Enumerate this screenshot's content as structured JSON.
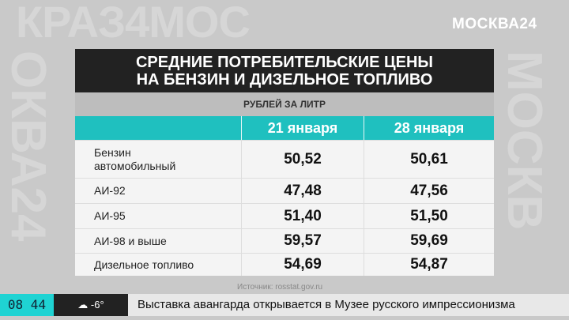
{
  "background_text": [
    "КРАЗ4МОС",
    "ОКВА24",
    "МОСКВ"
  ],
  "logo": "МОСКВА24",
  "title_line1": "СРЕДНИЕ ПОТРЕБИТЕЛЬСКИЕ ЦЕНЫ",
  "title_line2": "НА БЕНЗИН И ДИЗЕЛЬНОЕ ТОПЛИВО",
  "unit": "РУБЛЕЙ ЗА ЛИТР",
  "columns": [
    "",
    "21 января",
    "28 января"
  ],
  "rows": [
    {
      "name": "Бензин автомобильный",
      "v1": "50,52",
      "v2": "50,61"
    },
    {
      "name": "АИ-92",
      "v1": "47,48",
      "v2": "47,56"
    },
    {
      "name": "АИ-95",
      "v1": "51,40",
      "v2": "51,50"
    },
    {
      "name": "АИ-98 и выше",
      "v1": "59,57",
      "v2": "59,69"
    },
    {
      "name": "Дизельное топливо",
      "v1": "54,69",
      "v2": "54,87"
    }
  ],
  "source": "Источник: rosstat.gov.ru",
  "ticker": {
    "time": "08 44",
    "weather_icon": "snow-cloud-icon",
    "temperature": "-6°",
    "headline": "Выставка авангарда открывается в Музее русского импрессионизма"
  },
  "colors": {
    "accent": "#1fc0bf",
    "title_bg": "#222222"
  }
}
